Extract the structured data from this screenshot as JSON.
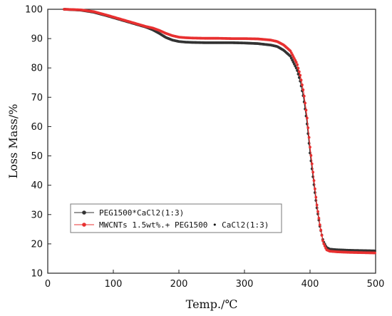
{
  "chart_data": {
    "type": "line",
    "title": "",
    "xlabel": "Temp./℃",
    "ylabel": "Loss Mass/%",
    "xlim": [
      0,
      500
    ],
    "ylim": [
      10,
      100
    ],
    "xticks": [
      0,
      100,
      200,
      300,
      400,
      500
    ],
    "yticks": [
      10,
      20,
      30,
      40,
      50,
      60,
      70,
      80,
      90,
      100
    ],
    "grid": false,
    "legend_position": "bottom-left",
    "series": [
      {
        "name": "PEG1500*CaCl2(1:3)",
        "color": "#333333",
        "marker": "circle",
        "x": [
          25,
          50,
          70,
          90,
          110,
          130,
          150,
          160,
          170,
          180,
          190,
          200,
          210,
          220,
          240,
          260,
          280,
          300,
          320,
          340,
          350,
          360,
          370,
          380,
          385,
          390,
          395,
          400,
          405,
          410,
          415,
          420,
          425,
          430,
          440,
          460,
          480,
          500
        ],
        "values": [
          100.0,
          99.7,
          99.0,
          97.8,
          96.5,
          95.2,
          93.9,
          93.0,
          91.8,
          90.4,
          89.5,
          89.0,
          88.8,
          88.7,
          88.6,
          88.6,
          88.6,
          88.5,
          88.3,
          87.8,
          87.3,
          86.0,
          84.0,
          79.5,
          75.5,
          70.0,
          62.0,
          51.0,
          42.0,
          33.0,
          26.0,
          21.0,
          18.8,
          18.2,
          18.0,
          17.8,
          17.7,
          17.6
        ]
      },
      {
        "name": "MWCNTs 1.5wt%.+ PEG1500 • CaCl2(1:3)",
        "color": "#e83030",
        "marker": "circle",
        "x": [
          25,
          50,
          70,
          90,
          110,
          130,
          150,
          160,
          170,
          180,
          190,
          200,
          210,
          220,
          240,
          260,
          280,
          300,
          320,
          340,
          350,
          360,
          370,
          380,
          385,
          390,
          395,
          400,
          405,
          410,
          415,
          420,
          425,
          430,
          440,
          460,
          480,
          500
        ],
        "values": [
          100.0,
          99.8,
          99.2,
          98.0,
          96.7,
          95.4,
          94.1,
          93.6,
          92.8,
          91.8,
          91.0,
          90.5,
          90.3,
          90.2,
          90.1,
          90.1,
          90.0,
          90.0,
          89.9,
          89.5,
          89.0,
          87.8,
          85.8,
          81.5,
          77.5,
          72.0,
          64.0,
          53.0,
          43.5,
          34.0,
          26.5,
          20.5,
          18.0,
          17.5,
          17.3,
          17.1,
          17.0,
          16.9
        ]
      }
    ]
  }
}
